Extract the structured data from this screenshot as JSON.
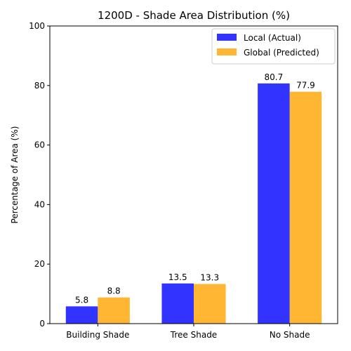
{
  "chart_data": {
    "type": "bar",
    "title": "1200D - Shade Area Distribution (%)",
    "xlabel": "",
    "ylabel": "Percentage of Area (%)",
    "categories": [
      "Building Shade",
      "Tree Shade",
      "No Shade"
    ],
    "ylim": [
      0,
      100
    ],
    "yticks": [
      0,
      20,
      40,
      60,
      80,
      100
    ],
    "grid": false,
    "legend_position": "top-right",
    "series": [
      {
        "name": "Local (Actual)",
        "values": [
          5.8,
          13.5,
          80.7
        ],
        "color": "#0000ff",
        "opacity": 0.8
      },
      {
        "name": "Global (Predicted)",
        "values": [
          8.8,
          13.3,
          77.9
        ],
        "color": "#ffa500",
        "opacity": 0.8
      }
    ]
  }
}
